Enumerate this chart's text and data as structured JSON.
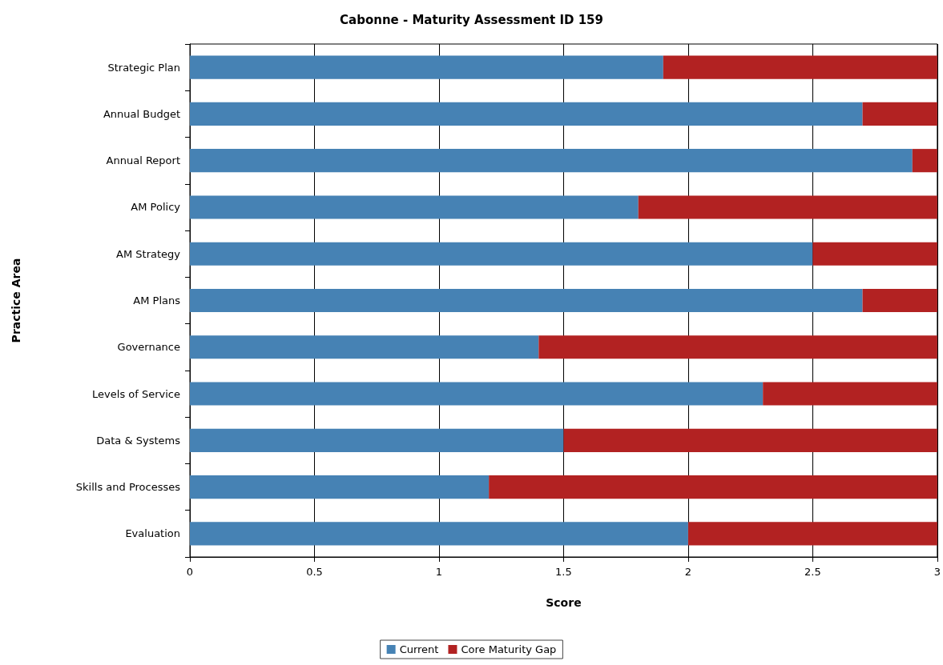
{
  "chart_data": {
    "type": "bar",
    "orientation": "horizontal",
    "stacked": true,
    "title": "Cabonne - Maturity Assessment ID 159",
    "xlabel": "Score",
    "ylabel": "Practice Area",
    "categories": [
      "Strategic Plan",
      "Annual Budget",
      "Annual Report",
      "AM Policy",
      "AM Strategy",
      "AM Plans",
      "Governance",
      "Levels of Service",
      "Data & Systems",
      "Skills and Processes",
      "Evaluation"
    ],
    "series": [
      {
        "name": "Current",
        "color": "#4682b4",
        "values": [
          1.9,
          2.7,
          2.9,
          1.8,
          2.5,
          2.7,
          1.4,
          2.3,
          1.5,
          1.2,
          2.0
        ]
      },
      {
        "name": "Core Maturity Gap",
        "color": "#b22222",
        "values": [
          1.1,
          0.3,
          0.1,
          1.2,
          0.5,
          0.3,
          1.6,
          0.7,
          1.5,
          1.8,
          1.0
        ]
      }
    ],
    "xlim": [
      0,
      3
    ],
    "xticks": [
      0,
      0.5,
      1,
      1.5,
      2,
      2.5,
      3
    ],
    "grid": "x",
    "legend": "bottom"
  }
}
